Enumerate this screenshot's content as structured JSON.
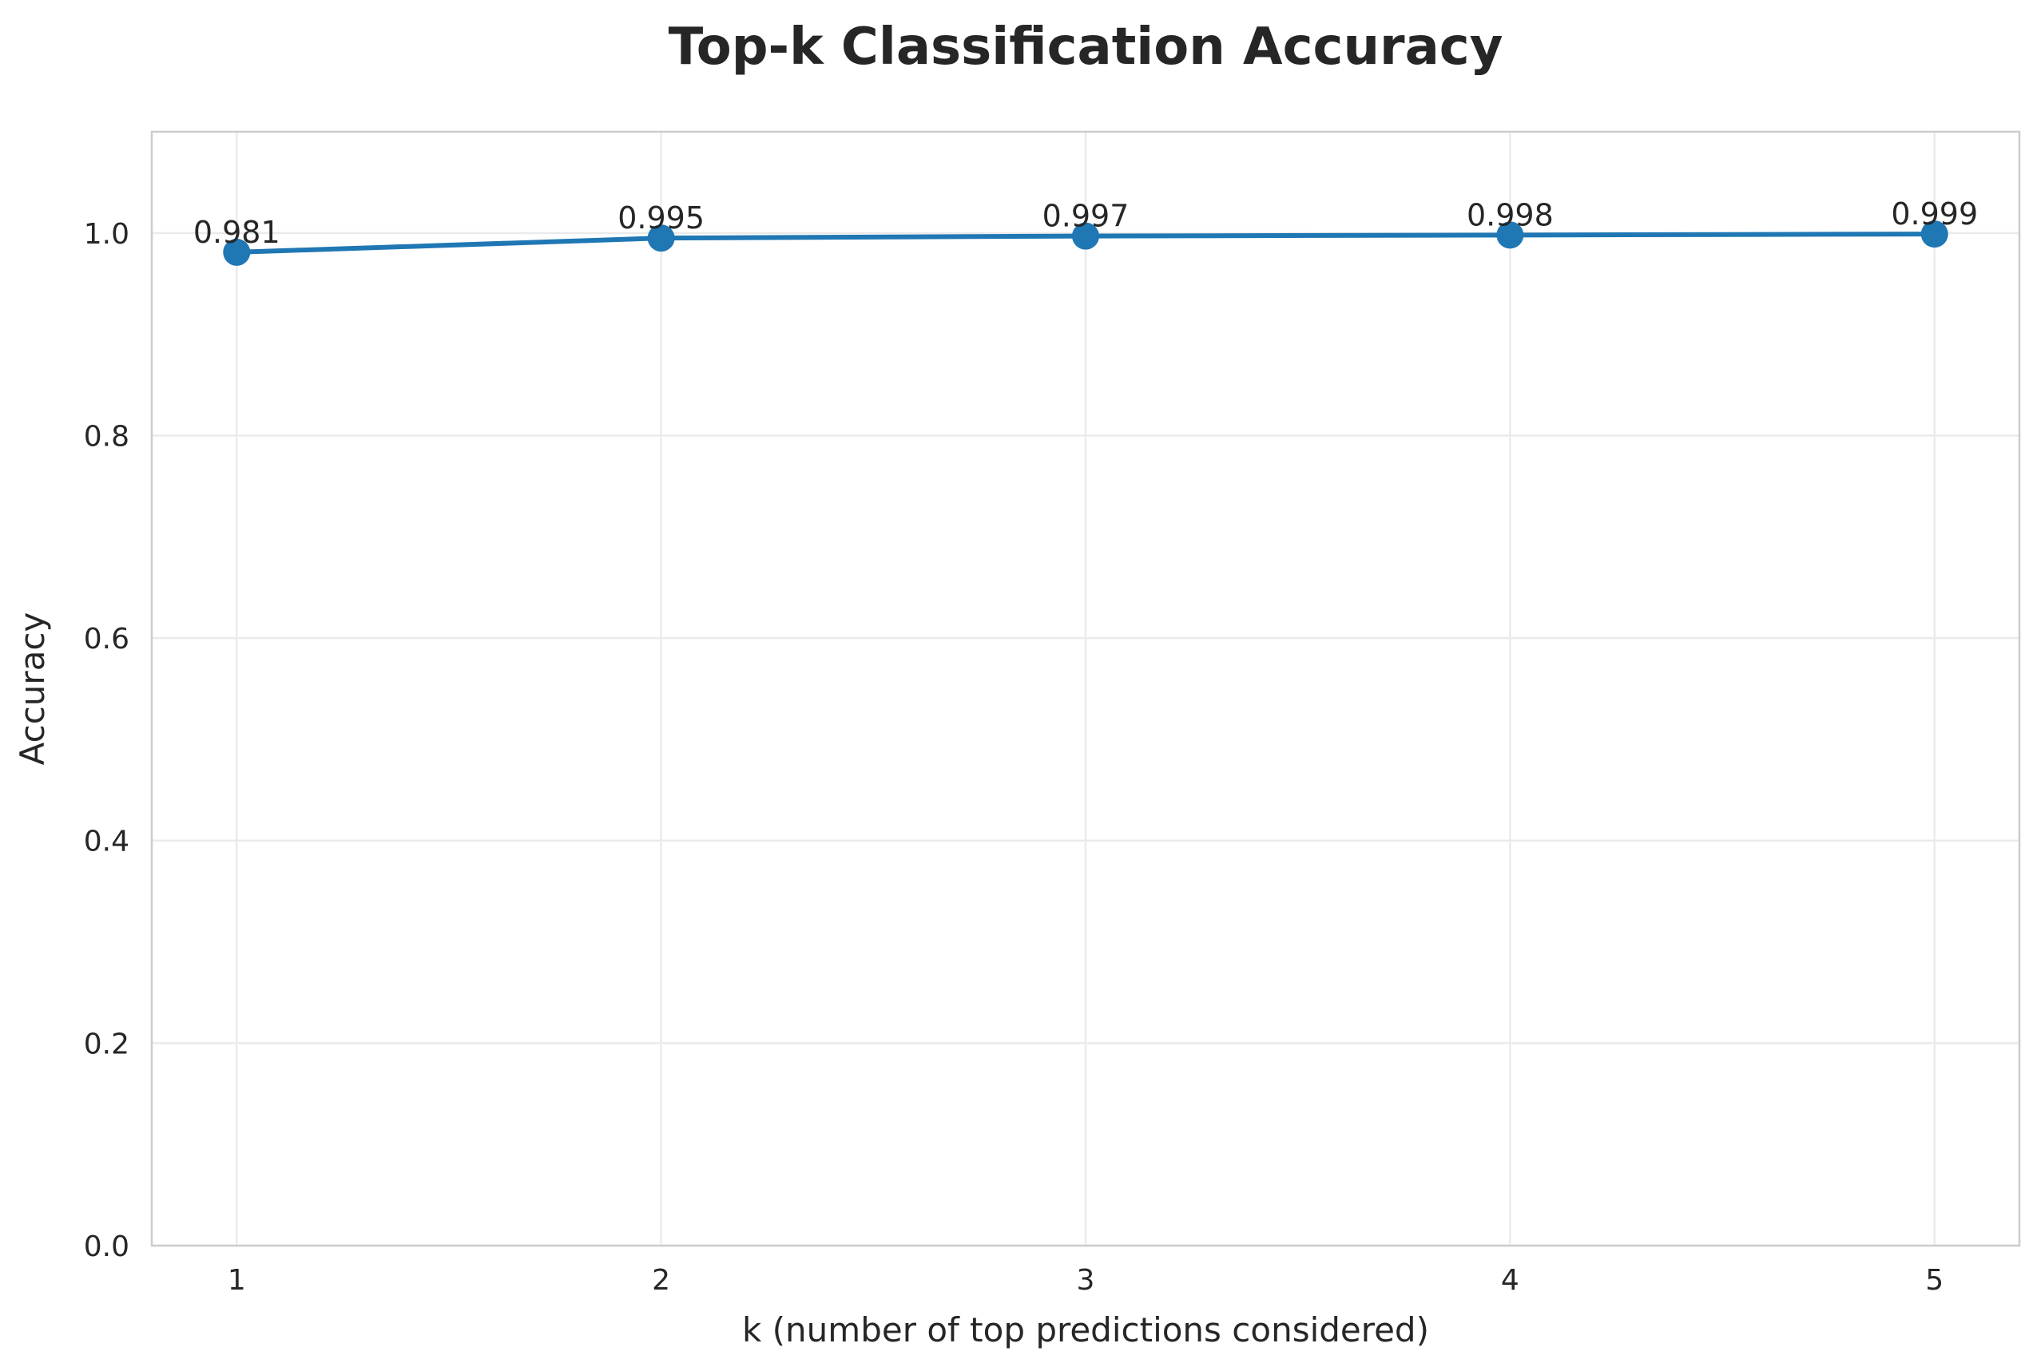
{
  "chart_data": {
    "type": "line",
    "title": "Top-k Classification Accuracy",
    "xlabel": "k (number of top predictions considered)",
    "ylabel": "Accuracy",
    "x": [
      1,
      2,
      3,
      4,
      5
    ],
    "xticks": [
      "1",
      "2",
      "3",
      "4",
      "5"
    ],
    "yticks": [
      "0.0",
      "0.2",
      "0.4",
      "0.6",
      "0.8",
      "1.0"
    ],
    "ytick_values": [
      0.0,
      0.2,
      0.4,
      0.6,
      0.8,
      1.0
    ],
    "xlim": [
      0.8,
      5.2
    ],
    "ylim": [
      0.0,
      1.1
    ],
    "grid": true,
    "series": [
      {
        "values": [
          0.981,
          0.995,
          0.997,
          0.998,
          0.999
        ],
        "labels": [
          "0.981",
          "0.995",
          "0.997",
          "0.998",
          "0.999"
        ],
        "color": "#1f77b4",
        "marker": "circle"
      }
    ]
  }
}
